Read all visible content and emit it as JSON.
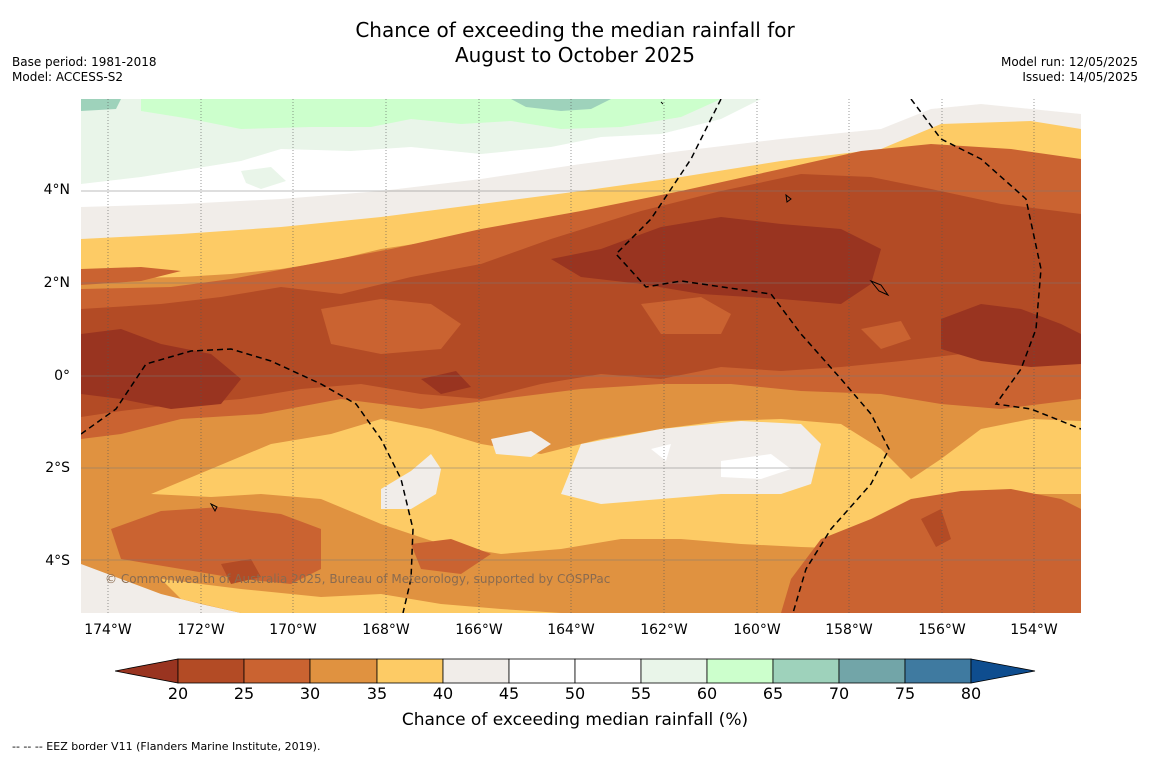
{
  "title": {
    "line1": "Chance of exceeding the median rainfall for",
    "line2": "August to October 2025"
  },
  "meta": {
    "base_period": "Base period: 1981-2018",
    "model": "Model: ACCESS-S2",
    "model_run": "Model run: 12/05/2025",
    "issued": "Issued: 14/05/2025"
  },
  "map": {
    "lat_labels": [
      "4°N",
      "2°N",
      "0°",
      "2°S",
      "4°S"
    ],
    "lon_labels": [
      "174°W",
      "172°W",
      "170°W",
      "168°W",
      "166°W",
      "164°W",
      "162°W",
      "160°W",
      "158°W",
      "156°W",
      "154°W"
    ],
    "credit": "© Commonwealth of Australia 2025, Bureau of Meteorology, supported by COSPPac"
  },
  "colorbar": {
    "ticks": [
      "20",
      "25",
      "30",
      "35",
      "40",
      "45",
      "50",
      "55",
      "60",
      "65",
      "70",
      "75",
      "80"
    ],
    "colors": {
      "lt20": "#993420",
      "20-25": "#b34b25",
      "25-30": "#ca6331",
      "30-35": "#e09240",
      "35-40": "#fdcb65",
      "40-45": "#f1ede9",
      "45-50": "#ffffff",
      "50-55": "#ffffff",
      "55-60": "#e9f5e9",
      "60-65": "#ccffcc",
      "65-70": "#9ed2bb",
      "70-75": "#72a5a8",
      "75-80": "#3f7aa0",
      "gt80": "#0e4d8f"
    },
    "title": "Chance of exceeding median rainfall (%)"
  },
  "footnote": "-- -- -- EEZ border V11 (Flanders Marine Institute, 2019)."
}
